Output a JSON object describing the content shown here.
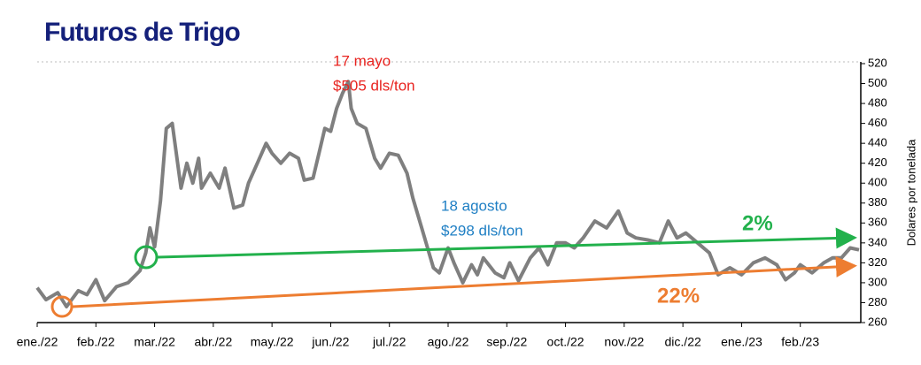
{
  "chart_data": {
    "type": "line",
    "title": "Futuros de Trigo",
    "y_axis_label": "Dolares por tonelada",
    "y_axis_side": "right",
    "grid": false,
    "xlim": [
      0,
      14
    ],
    "xticks": [
      {
        "value": 0,
        "label": "ene./22"
      },
      {
        "value": 1,
        "label": "feb./22"
      },
      {
        "value": 2,
        "label": "mar./22"
      },
      {
        "value": 3,
        "label": "abr./22"
      },
      {
        "value": 4,
        "label": "may./22"
      },
      {
        "value": 5,
        "label": "jun./22"
      },
      {
        "value": 6,
        "label": "jul./22"
      },
      {
        "value": 7,
        "label": "ago./22"
      },
      {
        "value": 8,
        "label": "sep./22"
      },
      {
        "value": 9,
        "label": "oct./22"
      },
      {
        "value": 10,
        "label": "nov./22"
      },
      {
        "value": 11,
        "label": "dic./22"
      },
      {
        "value": 12,
        "label": "ene./23"
      },
      {
        "value": 13,
        "label": "feb./23"
      }
    ],
    "ylim": [
      260,
      520
    ],
    "yticks": [
      260,
      280,
      300,
      320,
      340,
      360,
      380,
      400,
      420,
      440,
      460,
      480,
      500,
      520
    ],
    "series": [
      {
        "color": "#7f7f7f",
        "x": [
          0,
          0.15,
          0.35,
          0.5,
          0.7,
          0.85,
          1.0,
          1.15,
          1.35,
          1.55,
          1.75,
          1.85,
          1.92,
          2.0,
          2.1,
          2.2,
          2.3,
          2.45,
          2.55,
          2.65,
          2.75,
          2.8,
          2.95,
          3.1,
          3.2,
          3.35,
          3.5,
          3.6,
          3.75,
          3.9,
          4.0,
          4.15,
          4.3,
          4.45,
          4.55,
          4.7,
          4.8,
          4.9,
          5.0,
          5.1,
          5.2,
          5.3,
          5.35,
          5.45,
          5.6,
          5.75,
          5.85,
          6.0,
          6.15,
          6.3,
          6.4,
          6.55,
          6.65,
          6.75,
          6.85,
          7.0,
          7.1,
          7.25,
          7.4,
          7.5,
          7.6,
          7.8,
          7.95,
          8.05,
          8.2,
          8.4,
          8.55,
          8.7,
          8.85,
          9.0,
          9.15,
          9.3,
          9.5,
          9.7,
          9.9,
          10.05,
          10.2,
          10.4,
          10.6,
          10.75,
          10.9,
          11.05,
          11.25,
          11.45,
          11.6,
          11.8,
          12.0,
          12.2,
          12.4,
          12.6,
          12.75,
          12.9,
          13.0,
          13.2,
          13.4,
          13.55,
          13.7,
          13.85,
          14.0
        ],
        "values": [
          295,
          283,
          290,
          276,
          292,
          288,
          303,
          282,
          296,
          300,
          312,
          330,
          355,
          336,
          382,
          455,
          460,
          395,
          420,
          400,
          425,
          395,
          410,
          395,
          415,
          375,
          378,
          400,
          420,
          440,
          430,
          420,
          430,
          425,
          403,
          405,
          430,
          455,
          452,
          475,
          490,
          502,
          475,
          460,
          455,
          425,
          415,
          430,
          428,
          410,
          385,
          355,
          335,
          315,
          310,
          335,
          320,
          300,
          318,
          308,
          325,
          310,
          305,
          320,
          302,
          325,
          335,
          318,
          340,
          340,
          335,
          345,
          362,
          355,
          372,
          350,
          345,
          343,
          340,
          362,
          345,
          350,
          340,
          330,
          308,
          315,
          308,
          320,
          325,
          318,
          303,
          310,
          318,
          310,
          320,
          325,
          325,
          335,
          333
        ]
      }
    ],
    "annotations": [
      {
        "lines": [
          "17 mayo",
          "$505 dls/ton"
        ],
        "color": "#e8231f"
      },
      {
        "lines": [
          "18 agosto",
          "$298 dls/ton"
        ],
        "color": "#1f7fc4"
      },
      {
        "text": "2%",
        "color": "#22b14c"
      },
      {
        "text": "22%",
        "color": "#ed7d31"
      }
    ]
  }
}
